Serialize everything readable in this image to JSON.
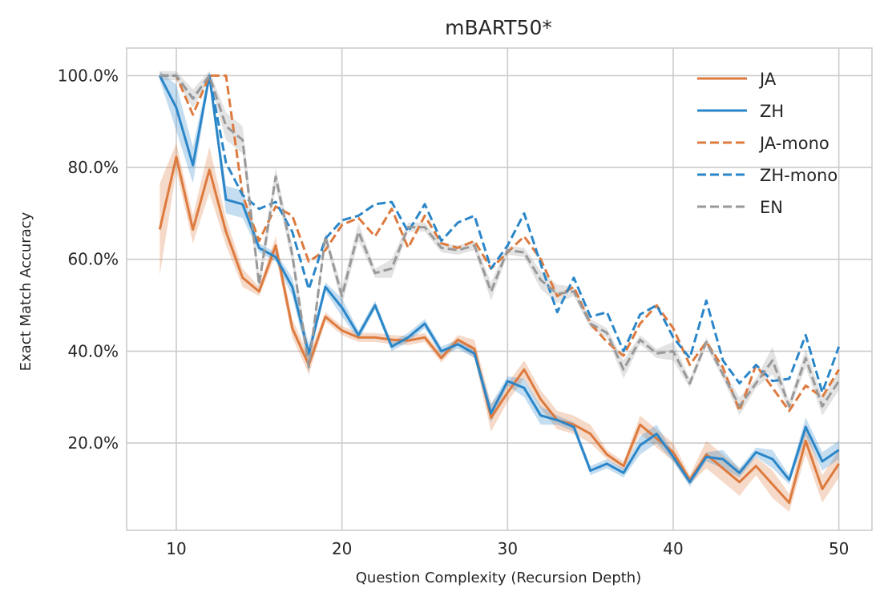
{
  "chart_data": {
    "type": "line",
    "title": "mBART50*",
    "xlabel": "Question Complexity (Recursion Depth)",
    "ylabel": "Exact Match Accuracy",
    "xlim": [
      7,
      52
    ],
    "ylim": [
      1,
      106
    ],
    "xticks": [
      10,
      20,
      30,
      40,
      50
    ],
    "yticks": [
      20,
      40,
      60,
      80,
      100
    ],
    "ytick_format": "percent_1dp",
    "grid": true,
    "legend_position": "top-right",
    "x": [
      9,
      10,
      11,
      12,
      13,
      14,
      15,
      16,
      17,
      18,
      19,
      20,
      21,
      22,
      23,
      24,
      25,
      26,
      27,
      28,
      29,
      30,
      31,
      32,
      33,
      34,
      35,
      36,
      37,
      38,
      39,
      40,
      41,
      42,
      43,
      44,
      45,
      46,
      47,
      48,
      49,
      50
    ],
    "series": [
      {
        "name": "JA",
        "color": "#dd7a3e",
        "style": "solid",
        "values": [
          66.5,
          82.3,
          66.5,
          79.5,
          66,
          56,
          53,
          63,
          45,
          37,
          47.5,
          44.5,
          43,
          43,
          42.5,
          42.3,
          43,
          38.5,
          42.5,
          40.5,
          25.5,
          31,
          36,
          29.5,
          25,
          24,
          22,
          17.5,
          15,
          24,
          21,
          18,
          12,
          17.5,
          14.5,
          11.5,
          15,
          11,
          7,
          20.5,
          10,
          15.5
        ],
        "band": [
          10,
          3,
          3,
          5,
          3,
          2,
          1,
          2,
          2,
          2,
          1,
          1,
          1,
          1,
          1,
          1,
          1,
          1,
          1,
          2,
          3,
          2,
          2,
          2,
          2,
          2,
          2,
          1,
          1,
          2,
          2,
          2,
          1,
          3,
          3,
          3,
          2,
          3,
          2,
          3,
          3,
          3
        ]
      },
      {
        "name": "ZH",
        "color": "#2a86c8",
        "style": "solid",
        "values": [
          100,
          93,
          80.5,
          100,
          73,
          72,
          62.5,
          60.5,
          54,
          39.5,
          54,
          49.5,
          43.5,
          50,
          41,
          43,
          46,
          40,
          41.5,
          39.5,
          26.5,
          33.5,
          32,
          26,
          25,
          23.5,
          14,
          15.5,
          13.5,
          19.5,
          22,
          17,
          11.5,
          17,
          16.5,
          13.5,
          18,
          16.5,
          12,
          23.5,
          16,
          18.5
        ],
        "band": [
          1,
          5,
          4,
          1,
          3,
          3,
          1,
          1,
          2,
          2,
          1,
          2,
          1,
          1,
          1,
          1,
          1,
          1,
          1,
          1,
          2,
          1,
          2,
          2,
          1,
          1,
          1,
          1,
          1,
          2,
          2,
          1,
          1,
          1,
          2,
          1,
          1,
          2,
          1,
          2,
          2,
          2
        ]
      },
      {
        "name": "JA-mono",
        "color": "#dd7a3e",
        "style": "dashed",
        "values": [
          100,
          100,
          91.5,
          100,
          100,
          74,
          64,
          71.5,
          69.5,
          59.5,
          62,
          67.5,
          69,
          65,
          71,
          62.5,
          69.5,
          63.5,
          62.5,
          64,
          58,
          61.5,
          65,
          60,
          52,
          54,
          46,
          42,
          39,
          46,
          50,
          45,
          37,
          42,
          36.5,
          27,
          37,
          32,
          27,
          32.5,
          30,
          36
        ]
      },
      {
        "name": "ZH-mono",
        "color": "#2a86c8",
        "style": "dashed",
        "values": [
          100,
          100,
          95,
          100,
          81,
          74,
          71,
          72.5,
          66,
          53.5,
          64.5,
          68.5,
          69.5,
          72,
          72.5,
          66,
          72,
          64,
          68,
          69.5,
          58,
          63,
          70,
          59,
          48.5,
          56,
          47.5,
          48.5,
          40,
          48,
          50,
          43,
          38.5,
          51,
          38,
          33,
          37,
          33.5,
          34,
          43.5,
          31,
          41
        ]
      },
      {
        "name": "EN",
        "color": "#999999",
        "style": "dashed",
        "values": [
          100,
          100,
          95,
          100,
          89,
          86,
          54.5,
          78,
          61,
          36.5,
          65,
          52,
          66,
          57,
          58,
          67,
          67,
          62.5,
          62,
          63,
          53,
          62,
          61.5,
          55.5,
          52.5,
          53,
          46,
          44,
          36,
          42.5,
          39.5,
          40,
          33,
          42,
          35,
          28,
          33,
          38,
          28,
          38.5,
          28,
          33.5
        ],
        "band": [
          1,
          1,
          2,
          1,
          3,
          3,
          2,
          2,
          2,
          2,
          1,
          2,
          2,
          1,
          2,
          1,
          1,
          1,
          1,
          1,
          2,
          1,
          1,
          2,
          2,
          1,
          1,
          1,
          2,
          1,
          1,
          2,
          1,
          1,
          1,
          2,
          1,
          3,
          1,
          2,
          2,
          2
        ]
      }
    ]
  }
}
